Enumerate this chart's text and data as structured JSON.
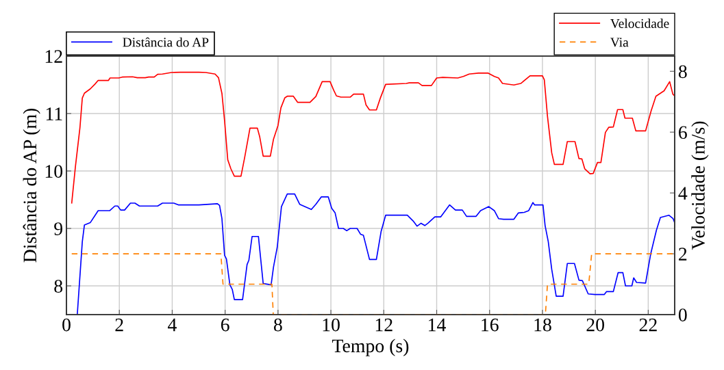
{
  "chart_data": {
    "type": "line",
    "xlabel": "Tempo (s)",
    "ylabel": "Distância do AP (m)",
    "y2label": "Velocidade (m/s)",
    "xlim": [
      0,
      23
    ],
    "xticks": [
      0,
      2,
      4,
      6,
      8,
      10,
      12,
      14,
      16,
      18,
      20,
      22
    ],
    "ylim": [
      7.5,
      12
    ],
    "yticks": [
      8,
      9,
      10,
      11,
      12
    ],
    "y2lim": [
      0,
      8.5
    ],
    "y2ticks": [
      0,
      2,
      4,
      6,
      8
    ],
    "grid": true,
    "legend": "top",
    "marker": "none",
    "series": [
      {
        "name": "Distância do AP",
        "color": "#0000ff",
        "line_style": "solid",
        "x": [
          0.41,
          0.6,
          0.68,
          0.9,
          1.2,
          1.64,
          1.83,
          1.94,
          2.05,
          2.2,
          2.42,
          2.59,
          2.76,
          3.45,
          3.63,
          4.06,
          4.23,
          5.01,
          5.71,
          5.79,
          5.88,
          5.98,
          6.05,
          6.18,
          6.27,
          6.35,
          6.66,
          6.83,
          6.9,
          7.02,
          7.26,
          7.44,
          7.74,
          7.83,
          7.97,
          8.13,
          8.35,
          8.63,
          8.82,
          9.26,
          9.43,
          9.64,
          9.9,
          10.03,
          10.16,
          10.29,
          10.47,
          10.6,
          10.73,
          10.99,
          11.12,
          11.23,
          11.46,
          11.72,
          11.9,
          12.07,
          12.89,
          13.11,
          13.26,
          13.41,
          13.55,
          13.67,
          13.93,
          14.15,
          14.49,
          14.71,
          14.97,
          15.13,
          15.49,
          15.66,
          15.97,
          16.18,
          16.34,
          16.53,
          16.92,
          17.09,
          17.31,
          17.48,
          17.64,
          17.7,
          18.02,
          18.1,
          18.22,
          18.35,
          18.52,
          18.78,
          18.94,
          19.21,
          19.38,
          19.51,
          19.73,
          19.99,
          20.34,
          20.42,
          20.68,
          20.86,
          21.04,
          21.14,
          21.38,
          21.45,
          21.56,
          21.9,
          22.09,
          22.31,
          22.46,
          22.78,
          22.94,
          23.0
        ],
        "values": [
          7.5,
          8.77,
          9.06,
          9.1,
          9.31,
          9.31,
          9.39,
          9.39,
          9.32,
          9.32,
          9.44,
          9.44,
          9.39,
          9.39,
          9.44,
          9.44,
          9.41,
          9.41,
          9.43,
          9.4,
          9.17,
          8.53,
          8.47,
          8.02,
          7.94,
          7.76,
          7.76,
          8.37,
          8.45,
          8.86,
          8.86,
          8.04,
          8.02,
          8.33,
          8.67,
          9.38,
          9.6,
          9.6,
          9.42,
          9.33,
          9.42,
          9.55,
          9.55,
          9.35,
          9.27,
          9.0,
          9.0,
          8.96,
          9.0,
          9.0,
          8.9,
          8.88,
          8.46,
          8.46,
          8.95,
          9.23,
          9.23,
          9.13,
          9.04,
          9.09,
          9.05,
          9.09,
          9.2,
          9.2,
          9.41,
          9.32,
          9.32,
          9.21,
          9.21,
          9.31,
          9.38,
          9.31,
          9.17,
          9.16,
          9.16,
          9.27,
          9.28,
          9.31,
          9.45,
          9.41,
          9.41,
          9.05,
          8.77,
          8.29,
          7.82,
          7.82,
          8.39,
          8.39,
          8.1,
          8.09,
          7.86,
          7.85,
          7.85,
          7.9,
          7.9,
          8.23,
          8.23,
          8.0,
          8.0,
          8.14,
          8.06,
          8.05,
          8.55,
          8.97,
          9.19,
          9.23,
          9.17,
          9.1
        ]
      },
      {
        "name": "Velocidade",
        "color": "#ff0000",
        "axis": "y2",
        "line_style": "solid",
        "x": [
          0.2,
          0.34,
          0.51,
          0.6,
          0.68,
          0.9,
          1.07,
          1.2,
          1.59,
          1.65,
          1.98,
          2.11,
          2.5,
          2.68,
          2.98,
          3.11,
          3.32,
          3.45,
          3.63,
          3.97,
          4.32,
          5.01,
          5.27,
          5.62,
          5.75,
          5.88,
          5.98,
          6.1,
          6.22,
          6.35,
          6.6,
          6.74,
          6.94,
          7.22,
          7.31,
          7.44,
          7.71,
          7.83,
          8.0,
          8.11,
          8.26,
          8.35,
          8.58,
          8.74,
          9.21,
          9.43,
          9.67,
          9.97,
          10.1,
          10.21,
          10.38,
          10.73,
          10.86,
          11.23,
          11.33,
          11.46,
          11.72,
          11.87,
          12.07,
          12.85,
          12.96,
          13.31,
          13.45,
          13.8,
          14.0,
          14.23,
          14.8,
          15.01,
          15.23,
          15.58,
          15.95,
          16.18,
          16.34,
          16.49,
          16.92,
          17.18,
          17.53,
          18.0,
          18.07,
          18.19,
          18.35,
          18.45,
          18.78,
          18.94,
          19.23,
          19.38,
          19.49,
          19.6,
          19.8,
          19.92,
          20.08,
          20.21,
          20.38,
          20.51,
          20.68,
          20.84,
          21.04,
          21.12,
          21.4,
          21.53,
          21.9,
          22.11,
          22.29,
          22.6,
          22.81,
          22.93,
          23.0
        ],
        "values": [
          3.67,
          4.87,
          6.14,
          7.12,
          7.28,
          7.42,
          7.57,
          7.7,
          7.7,
          7.78,
          7.78,
          7.81,
          7.82,
          7.79,
          7.79,
          7.81,
          7.81,
          7.9,
          7.91,
          7.96,
          7.97,
          7.97,
          7.96,
          7.91,
          7.79,
          7.27,
          6.37,
          5.09,
          4.79,
          4.55,
          4.55,
          5.17,
          6.13,
          6.13,
          5.84,
          5.21,
          5.21,
          5.77,
          6.22,
          6.8,
          7.13,
          7.18,
          7.18,
          6.98,
          6.98,
          7.17,
          7.66,
          7.66,
          7.39,
          7.19,
          7.15,
          7.15,
          7.25,
          7.25,
          6.89,
          6.73,
          6.73,
          7.12,
          7.57,
          7.6,
          7.62,
          7.62,
          7.53,
          7.53,
          7.78,
          7.8,
          7.78,
          7.83,
          7.91,
          7.94,
          7.94,
          7.83,
          7.78,
          7.6,
          7.55,
          7.6,
          7.85,
          7.85,
          7.72,
          6.52,
          5.32,
          4.94,
          4.94,
          5.69,
          5.69,
          5.13,
          5.12,
          4.79,
          4.63,
          4.64,
          5.0,
          5.0,
          5.99,
          6.16,
          6.17,
          6.74,
          6.74,
          6.46,
          6.46,
          6.04,
          6.04,
          6.7,
          7.18,
          7.36,
          7.66,
          7.25,
          7.19
        ]
      },
      {
        "name": "Via",
        "color": "#ff8000",
        "axis": "y2",
        "line_style": "dashed",
        "x": [
          0.2,
          5.84,
          5.92,
          7.77,
          7.82,
          18.11,
          18.19,
          19.75,
          19.86,
          23.0
        ],
        "values": [
          2,
          2,
          1,
          1,
          0,
          0,
          1,
          1,
          2,
          2
        ]
      }
    ]
  }
}
